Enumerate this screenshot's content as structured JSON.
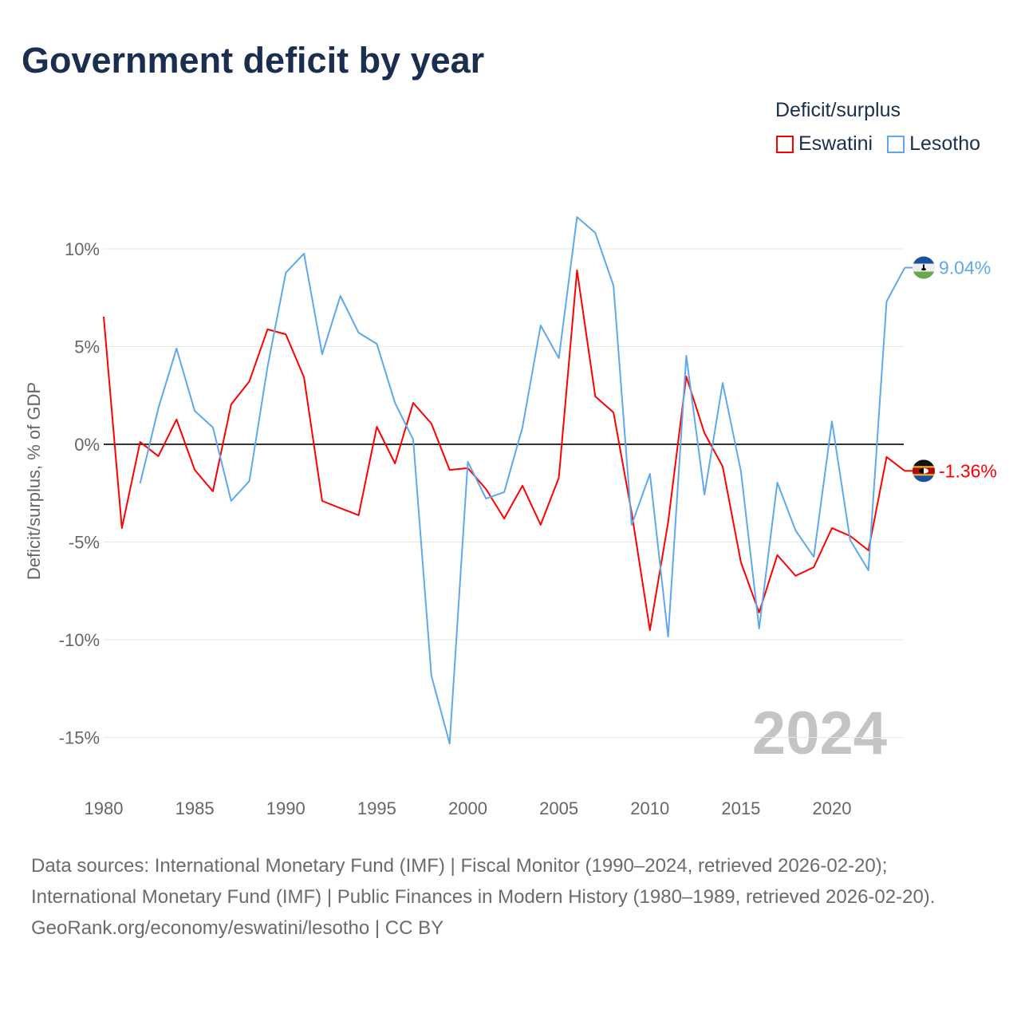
{
  "title": "Government deficit by year",
  "legend": {
    "title": "Deficit/surplus",
    "items": [
      "Eswatini",
      "Lesotho"
    ]
  },
  "source": {
    "line1": "Data sources: International Monetary Fund (IMF) | Fiscal Monitor (1990–2024, retrieved 2026-02-20); International Monetary Fund (IMF) | Public Finances in Modern History (1980–1989, retrieved 2026-02-20).",
    "line2": "GeoRank.org/economy/eswatini/lesotho | CC BY"
  },
  "chart_data": {
    "type": "line",
    "title": "Government deficit by year",
    "xlabel": "",
    "ylabel": "Deficit/surplus, % of GDP",
    "xlim": [
      1980,
      2024
    ],
    "ylim": [
      -15,
      10
    ],
    "xticks": [
      1980,
      1985,
      1990,
      1995,
      2000,
      2005,
      2010,
      2015,
      2020
    ],
    "yticks": [
      10,
      5,
      0,
      -5,
      -10,
      -15
    ],
    "ytick_labels": [
      "10%",
      "5%",
      "0%",
      "-5%",
      "-10%",
      "-15%"
    ],
    "watermark_year": "2024",
    "series": [
      {
        "name": "Eswatini",
        "color": "#ff0000",
        "end_label": "-1.36%",
        "start_year": 1980,
        "values": [
          6.53,
          -4.29,
          0.12,
          -0.61,
          1.27,
          -1.31,
          -2.41,
          2.04,
          3.22,
          5.88,
          5.63,
          3.43,
          -2.9,
          -3.27,
          -3.63,
          0.9,
          -0.98,
          2.12,
          1.06,
          -1.31,
          -1.22,
          -2.29,
          -3.8,
          -2.12,
          -4.12,
          -1.71,
          8.9,
          2.45,
          1.63,
          -3.5,
          -9.51,
          -4.0,
          3.47,
          0.57,
          -1.14,
          -6.04,
          -8.61,
          -5.67,
          -6.73,
          -6.29,
          -4.29,
          -4.69,
          -5.43,
          -0.65,
          -1.36
        ]
      },
      {
        "name": "Lesotho",
        "color": "#5ea8ee",
        "end_label": "9.04%",
        "start_year": 1982,
        "values": [
          -2.0,
          1.84,
          4.9,
          1.71,
          0.86,
          -2.9,
          -1.88,
          3.96,
          8.78,
          9.76,
          4.61,
          7.59,
          5.71,
          5.14,
          2.12,
          0.24,
          -11.84,
          -15.31,
          -0.9,
          -2.78,
          -2.45,
          0.86,
          6.08,
          4.41,
          11.63,
          10.82,
          8.12,
          -4.12,
          -1.51,
          -9.84,
          4.53,
          -2.57,
          3.14,
          -1.39,
          -9.43,
          -1.96,
          -4.41,
          -5.76,
          1.18,
          -4.9,
          -6.45,
          7.31,
          9.04
        ]
      }
    ]
  }
}
